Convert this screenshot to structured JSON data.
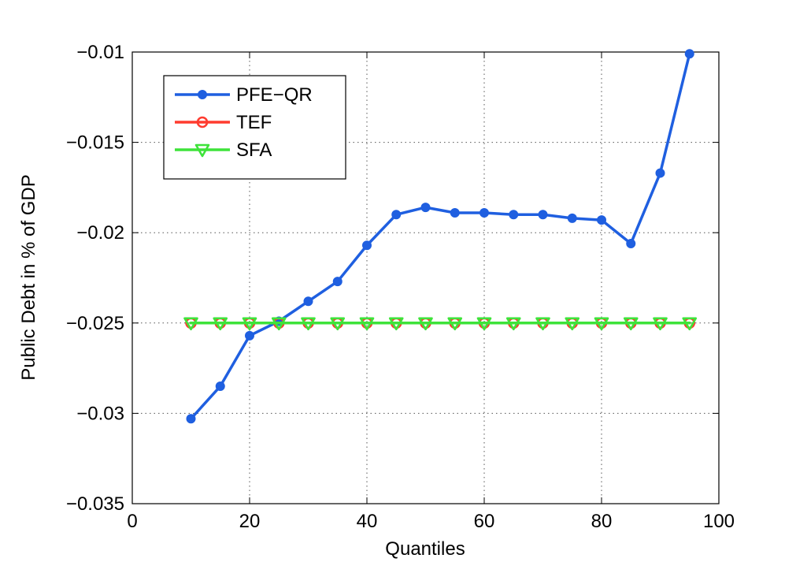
{
  "chart_data": {
    "type": "line",
    "title": "",
    "xlabel": "Quantiles",
    "ylabel": "Public Debt in % of GDP",
    "xlim": [
      0,
      100
    ],
    "ylim": [
      -0.035,
      -0.01
    ],
    "xticks": [
      0,
      20,
      40,
      60,
      80,
      100
    ],
    "xtick_labels": [
      "0",
      "20",
      "40",
      "60",
      "80",
      "100"
    ],
    "yticks": [
      -0.035,
      -0.03,
      -0.025,
      -0.02,
      -0.015,
      -0.01
    ],
    "ytick_labels": [
      "−0.035",
      "−0.03",
      "−0.025",
      "−0.02",
      "−0.015",
      "−0.01"
    ],
    "grid": true,
    "legend_position": "top-left",
    "x": [
      10,
      15,
      20,
      25,
      30,
      35,
      40,
      45,
      50,
      55,
      60,
      65,
      70,
      75,
      80,
      85,
      90,
      95
    ],
    "series": [
      {
        "name": "PFE−QR",
        "color": "#1f5fe0",
        "marker": "filled-circle",
        "values": [
          -0.0303,
          -0.0285,
          -0.0257,
          -0.0249,
          -0.0238,
          -0.0227,
          -0.0207,
          -0.019,
          -0.0186,
          -0.0189,
          -0.0189,
          -0.019,
          -0.019,
          -0.0192,
          -0.0193,
          -0.0206,
          -0.0167,
          -0.0101
        ]
      },
      {
        "name": "TEF",
        "color": "#ff3b2f",
        "marker": "open-circle",
        "values": [
          -0.025,
          -0.025,
          -0.025,
          -0.025,
          -0.025,
          -0.025,
          -0.025,
          -0.025,
          -0.025,
          -0.025,
          -0.025,
          -0.025,
          -0.025,
          -0.025,
          -0.025,
          -0.025,
          -0.025,
          -0.025
        ]
      },
      {
        "name": "SFA",
        "color": "#3ee33a",
        "marker": "down-triangle",
        "values": [
          -0.025,
          -0.025,
          -0.025,
          -0.025,
          -0.025,
          -0.025,
          -0.025,
          -0.025,
          -0.025,
          -0.025,
          -0.025,
          -0.025,
          -0.025,
          -0.025,
          -0.025,
          -0.025,
          -0.025,
          -0.025
        ]
      }
    ]
  }
}
